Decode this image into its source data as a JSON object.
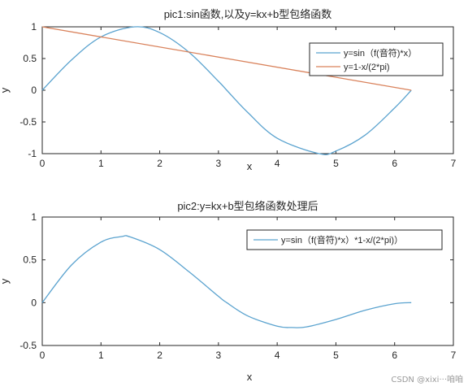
{
  "chart_data": [
    {
      "type": "line",
      "title": "pic1:sin函数,以及y=kx+b型包络函数",
      "xlabel": "x",
      "ylabel": "y",
      "xlim": [
        0,
        7
      ],
      "ylim": [
        -1,
        1
      ],
      "xticks": [
        "0",
        "1",
        "2",
        "3",
        "4",
        "5",
        "6",
        "7"
      ],
      "yticks": [
        "1",
        "0.5",
        "0",
        "-0.5",
        "-1"
      ],
      "grid": false,
      "legend_position": "top-right",
      "series": [
        {
          "name": "y=sin（f(音符)*x）",
          "color": "#5ba3cf",
          "x": [
            0,
            0.5,
            1.0,
            1.5708,
            2.0,
            2.5,
            3.0,
            3.1416,
            3.5,
            4.0,
            4.7124,
            5.0,
            5.5,
            6.0,
            6.2832
          ],
          "y": [
            0,
            0.479,
            0.841,
            1.0,
            0.909,
            0.598,
            0.141,
            0,
            -0.351,
            -0.757,
            -1.0,
            -0.959,
            -0.706,
            -0.279,
            0
          ]
        },
        {
          "name": "y=1-x/(2*pi)",
          "color": "#d9825b",
          "x": [
            0,
            6.2832
          ],
          "y": [
            1,
            0
          ]
        }
      ]
    },
    {
      "type": "line",
      "title": "pic2:y=kx+b型包络函数处理后",
      "xlabel": "x",
      "ylabel": "y",
      "xlim": [
        0,
        7
      ],
      "ylim": [
        -0.5,
        1
      ],
      "xticks": [
        "0",
        "1",
        "2",
        "3",
        "4",
        "5",
        "6",
        "7"
      ],
      "yticks": [
        "1",
        "0.5",
        "0",
        "-0.5"
      ],
      "grid": false,
      "legend_position": "top-right",
      "series": [
        {
          "name": "y=sin（f(音符)*x）*1-x/(2*pi)）",
          "color": "#5ba3cf",
          "x": [
            0,
            0.5,
            1.0,
            1.35,
            1.5,
            2.0,
            2.5,
            3.0,
            3.1416,
            3.5,
            4.0,
            4.25,
            4.5,
            5.0,
            5.5,
            6.0,
            6.2832
          ],
          "y": [
            0,
            0.441,
            0.707,
            0.772,
            0.767,
            0.62,
            0.36,
            0.074,
            0,
            -0.155,
            -0.275,
            -0.29,
            -0.283,
            -0.196,
            -0.088,
            -0.012,
            0
          ]
        }
      ]
    }
  ],
  "watermark": "CSDN @xixi···咱咱"
}
